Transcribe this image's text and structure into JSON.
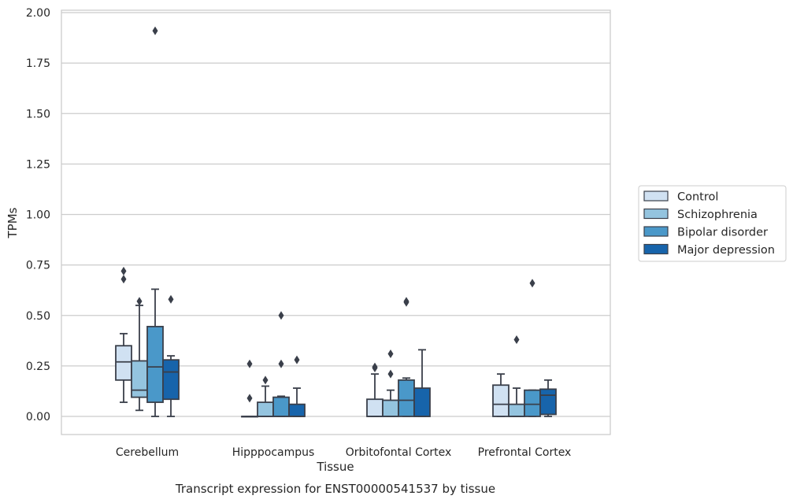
{
  "chart_data": {
    "type": "boxplot",
    "title": "",
    "caption": "Transcript expression for ENST00000541537 by tissue",
    "xlabel": "Tissue",
    "ylabel": "TPMs",
    "ylim": [
      -0.09,
      2.01
    ],
    "yticks": [
      "0.00",
      "0.25",
      "0.50",
      "0.75",
      "1.00",
      "1.25",
      "1.50",
      "1.75",
      "2.00"
    ],
    "ytick_values": [
      0,
      0.25,
      0.5,
      0.75,
      1.0,
      1.25,
      1.5,
      1.75,
      2.0
    ],
    "grid": true,
    "legend_position": "right",
    "categories": [
      "Cerebellum",
      "Hipppocampus",
      "Orbitofontal Cortex",
      "Prefrontal Cortex"
    ],
    "series": [
      {
        "name": "Control",
        "color": "#d0e1f2",
        "boxes": [
          {
            "whislo": 0.07,
            "q1": 0.18,
            "med": 0.27,
            "q3": 0.35,
            "whishi": 0.41,
            "fliers": [
              0.72,
              0.68
            ]
          },
          {
            "whislo": 0.0,
            "q1": 0.0,
            "med": 0.0,
            "q3": 0.0,
            "whishi": 0.0,
            "fliers": [
              0.26,
              0.09
            ]
          },
          {
            "whislo": 0.0,
            "q1": 0.0,
            "med": 0.0,
            "q3": 0.085,
            "whishi": 0.21,
            "fliers": [
              0.245,
              0.24
            ]
          },
          {
            "whislo": 0.0,
            "q1": 0.0,
            "med": 0.06,
            "q3": 0.155,
            "whishi": 0.21,
            "fliers": []
          }
        ]
      },
      {
        "name": "Schizophrenia",
        "color": "#94c4df",
        "boxes": [
          {
            "whislo": 0.03,
            "q1": 0.095,
            "med": 0.13,
            "q3": 0.275,
            "whishi": 0.55,
            "fliers": [
              0.57
            ]
          },
          {
            "whislo": 0.0,
            "q1": 0.0,
            "med": 0.0,
            "q3": 0.07,
            "whishi": 0.15,
            "fliers": [
              0.18
            ]
          },
          {
            "whislo": 0.0,
            "q1": 0.0,
            "med": 0.0,
            "q3": 0.08,
            "whishi": 0.13,
            "fliers": [
              0.31,
              0.21
            ]
          },
          {
            "whislo": 0.0,
            "q1": 0.0,
            "med": 0.0,
            "q3": 0.06,
            "whishi": 0.14,
            "fliers": [
              0.38
            ]
          }
        ]
      },
      {
        "name": "Bipolar disorder",
        "color": "#4a98c9",
        "boxes": [
          {
            "whislo": 0.0,
            "q1": 0.07,
            "med": 0.245,
            "q3": 0.445,
            "whishi": 0.63,
            "fliers": [
              1.91
            ]
          },
          {
            "whislo": 0.0,
            "q1": 0.0,
            "med": 0.0,
            "q3": 0.095,
            "whishi": 0.1,
            "fliers": [
              0.5,
              0.26
            ]
          },
          {
            "whislo": 0.0,
            "q1": 0.0,
            "med": 0.08,
            "q3": 0.18,
            "whishi": 0.19,
            "fliers": [
              0.57,
              0.565
            ]
          },
          {
            "whislo": 0.0,
            "q1": 0.0,
            "med": 0.06,
            "q3": 0.13,
            "whishi": 0.13,
            "fliers": [
              0.66
            ]
          }
        ]
      },
      {
        "name": "Major depression",
        "color": "#1764ab",
        "boxes": [
          {
            "whislo": 0.0,
            "q1": 0.085,
            "med": 0.22,
            "q3": 0.28,
            "whishi": 0.3,
            "fliers": [
              0.58
            ]
          },
          {
            "whislo": 0.0,
            "q1": 0.0,
            "med": 0.0,
            "q3": 0.06,
            "whishi": 0.14,
            "fliers": [
              0.28
            ]
          },
          {
            "whislo": 0.0,
            "q1": 0.0,
            "med": 0.0,
            "q3": 0.14,
            "whishi": 0.33,
            "fliers": []
          },
          {
            "whislo": 0.0,
            "q1": 0.01,
            "med": 0.105,
            "q3": 0.135,
            "whishi": 0.18,
            "fliers": []
          }
        ]
      }
    ]
  }
}
